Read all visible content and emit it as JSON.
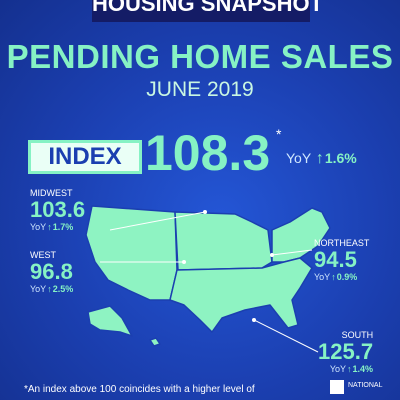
{
  "header": {
    "title": "HOUSING SNAPSHOT"
  },
  "title": "PENDING HOME SALES",
  "subtitle": "JUNE 2019",
  "index": {
    "label": "INDEX",
    "value": "108.3",
    "note_mark": "*",
    "yoy_label": "YoY",
    "yoy_change": "1.6%"
  },
  "regions": [
    {
      "name": "MIDWEST",
      "value": "103.6",
      "yoy_label": "YoY",
      "yoy_change": "1.7%"
    },
    {
      "name": "WEST",
      "value": "96.8",
      "yoy_label": "YoY",
      "yoy_change": "2.5%"
    },
    {
      "name": "NORTHEAST",
      "value": "94.5",
      "yoy_label": "YoY",
      "yoy_change": "0.9%"
    },
    {
      "name": "SOUTH",
      "value": "125.7",
      "yoy_label": "YoY",
      "yoy_change": "1.4%"
    }
  ],
  "footnote": "*An index above 100 coincides with a higher level of",
  "logo": "NATIONAL"
}
